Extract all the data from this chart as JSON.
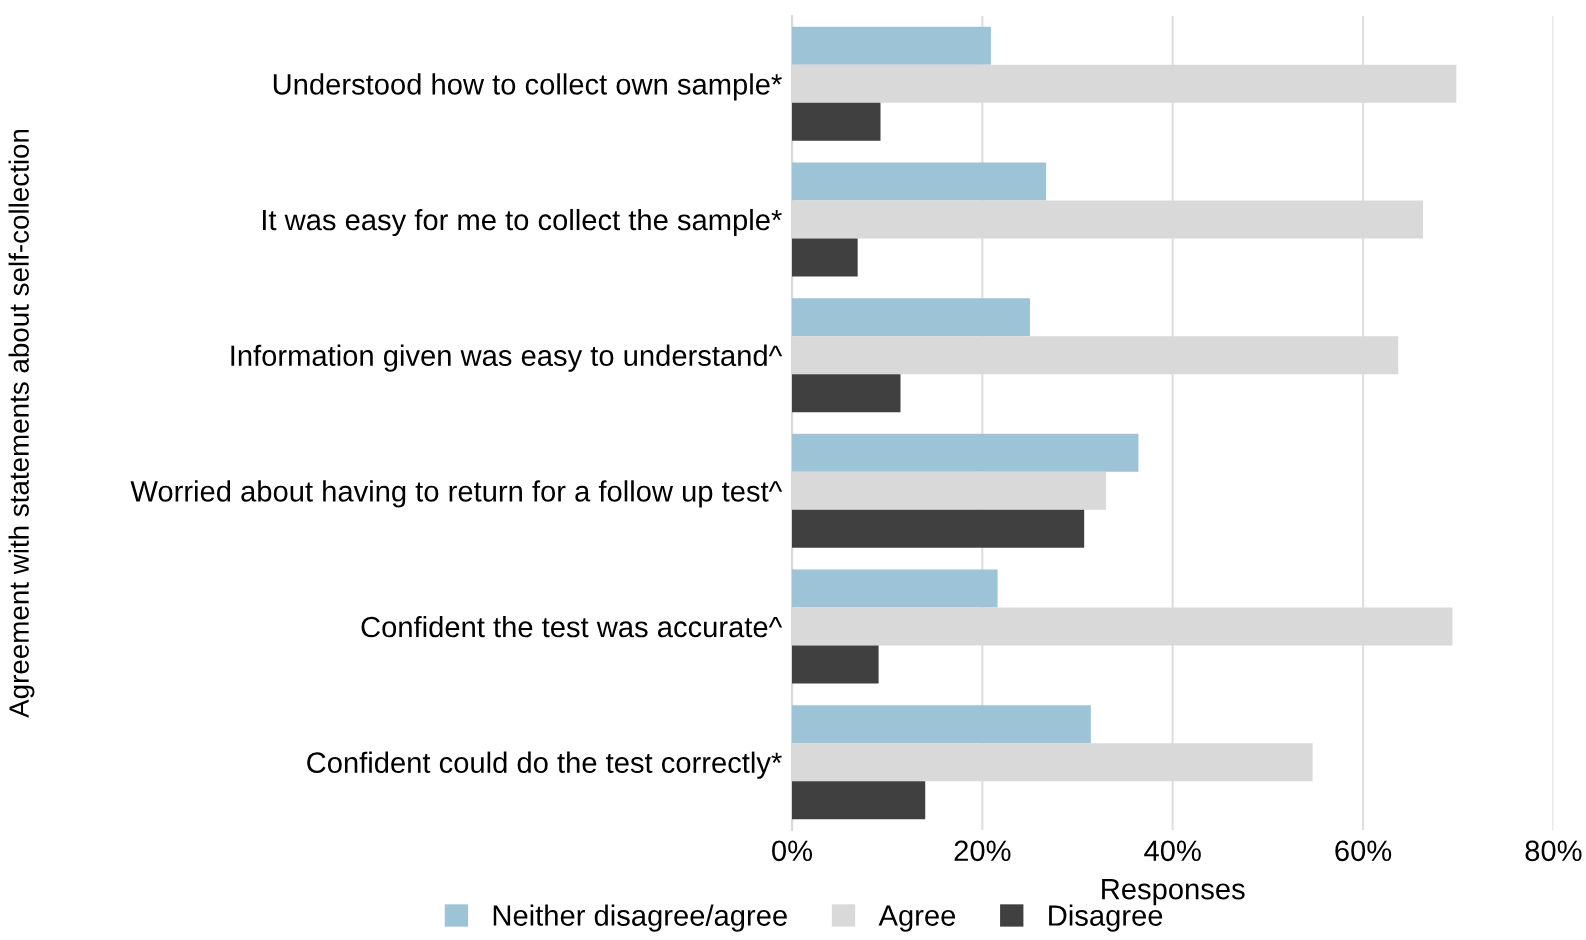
{
  "chart_data": {
    "type": "bar",
    "orientation": "horizontal",
    "ylabel": "Agreement with statements about self-collection",
    "xlabel": "Responses",
    "categories": [
      "Understood how to collect own sample*",
      "It was easy for me to collect the sample*",
      "Information given was easy to understand^",
      "Worried about having to return for a follow up test^",
      "Confident the test was accurate^",
      "Confident could do the test correctly*"
    ],
    "series": [
      {
        "name": "Neither disagree/agree",
        "color": "#9dc3d6",
        "values": [
          20.9,
          26.7,
          25.0,
          36.4,
          21.6,
          31.4
        ]
      },
      {
        "name": "Agree",
        "color": "#d9d9d9",
        "values": [
          69.8,
          66.3,
          63.7,
          33.0,
          69.4,
          54.7
        ]
      },
      {
        "name": "Disagree",
        "color": "#404040",
        "values": [
          9.3,
          6.9,
          11.4,
          30.7,
          9.1,
          14.0
        ]
      }
    ],
    "xlim": [
      0,
      80
    ],
    "xticks": [
      {
        "value": 0,
        "label": "0%"
      },
      {
        "value": 20,
        "label": "20%"
      },
      {
        "value": 40,
        "label": "40%"
      },
      {
        "value": 60,
        "label": "60%"
      },
      {
        "value": 80,
        "label": "80%"
      }
    ],
    "grid": "x",
    "legend": "bottom"
  }
}
